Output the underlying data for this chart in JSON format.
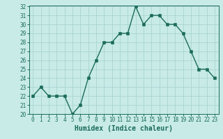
{
  "x": [
    0,
    1,
    2,
    3,
    4,
    5,
    6,
    7,
    8,
    9,
    10,
    11,
    12,
    13,
    14,
    15,
    16,
    17,
    18,
    19,
    20,
    21,
    22,
    23
  ],
  "y": [
    22,
    23,
    22,
    22,
    22,
    20,
    21,
    24,
    26,
    28,
    28,
    29,
    29,
    32,
    30,
    31,
    31,
    30,
    30,
    29,
    27,
    25,
    25,
    24
  ],
  "line_color": "#1a6b5a",
  "marker_color": "#1a6b5a",
  "bg_color": "#c8ebe8",
  "grid_color": "#aad4cf",
  "xlabel": "Humidex (Indice chaleur)",
  "ylim": [
    20,
    32
  ],
  "xlim": [
    -0.5,
    23.5
  ],
  "yticks": [
    20,
    21,
    22,
    23,
    24,
    25,
    26,
    27,
    28,
    29,
    30,
    31,
    32
  ],
  "xticks": [
    0,
    1,
    2,
    3,
    4,
    5,
    6,
    7,
    8,
    9,
    10,
    11,
    12,
    13,
    14,
    15,
    16,
    17,
    18,
    19,
    20,
    21,
    22,
    23
  ],
  "tick_label_fontsize": 5.5,
  "xlabel_fontsize": 7.0,
  "line_width": 1.0,
  "marker_size": 2.5
}
